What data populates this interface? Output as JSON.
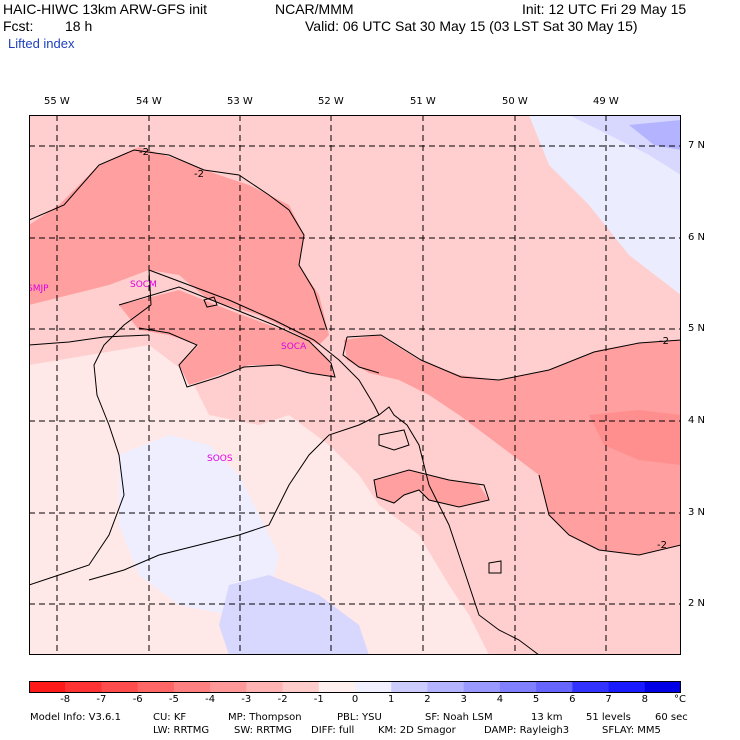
{
  "header": {
    "model_title": "HAIC-HIWC 13km ARW-GFS init",
    "org": "NCAR/MMM",
    "init": "Init: 12 UTC Fri 29 May 15",
    "fcst_label": "Fcst:",
    "fcst_value": "18 h",
    "valid": "Valid: 06 UTC Sat 30 May 15 (03 LST Sat 30 May 15)",
    "field_name": "Lifted index"
  },
  "axes": {
    "lon_labels": [
      "55 W",
      "54 W",
      "53 W",
      "52 W",
      "51 W",
      "50 W",
      "49 W"
    ],
    "lat_labels": [
      "7 N",
      "6 N",
      "5 N",
      "4 N",
      "3 N",
      "2 N"
    ]
  },
  "stations": [
    "SMJP",
    "SOCM",
    "SOCA",
    "SOOS"
  ],
  "contour_labels": [
    "-2",
    "-2",
    "-2",
    "-2"
  ],
  "colorbar": {
    "labels": [
      "-8",
      "-7",
      "-6",
      "-5",
      "-4",
      "-3",
      "-2",
      "-1",
      "0",
      "1",
      "2",
      "3",
      "4",
      "5",
      "6",
      "7",
      "8"
    ],
    "unit": "°C",
    "colors": [
      "#ff1a1a",
      "#ff3333",
      "#ff4d4d",
      "#ff6666",
      "#ff8080",
      "#ff9999",
      "#ffb3b3",
      "#ffcccc",
      "#fff0f0",
      "#f0f0ff",
      "#ccccff",
      "#b3b3ff",
      "#9999ff",
      "#8080ff",
      "#6666ff",
      "#3333ff",
      "#1a1aff",
      "#0000e6"
    ]
  },
  "footer": {
    "line1": [
      "Model Info: V3.6.1",
      "CU: KF",
      "MP: Thompson",
      "PBL: YSU",
      "SF: Noah LSM",
      "13 km",
      "51 levels",
      "60 sec"
    ],
    "line2": [
      "LW: RRTMG",
      "SW: RRTMG",
      "DIFF: full",
      "KM: 2D Smagor",
      "DAMP: Rayleigh3",
      "SFLAY: MM5"
    ]
  }
}
